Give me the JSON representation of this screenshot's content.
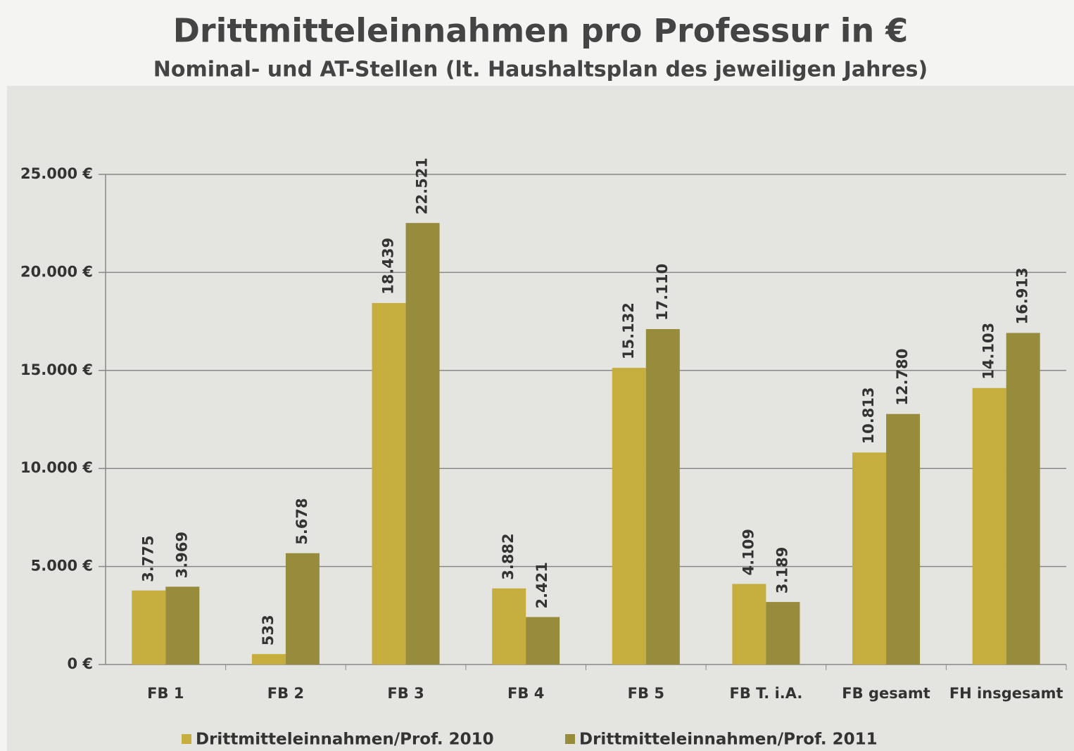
{
  "chart_data": {
    "type": "bar",
    "title": "Drittmitteleinnahmen pro Professur in €",
    "subtitle": "Nominal- und AT-Stellen (lt. Haushaltsplan des jeweiligen Jahres)",
    "categories": [
      "FB 1",
      "FB 2",
      "FB 3",
      "FB 4",
      "FB 5",
      "FB T. i.A.",
      "FB gesamt",
      "FH insgesamt"
    ],
    "series": [
      {
        "name": "Drittmitteleinnahmen/Prof. 2010",
        "color": "#c6ae3e",
        "values": [
          3775,
          533,
          18439,
          3882,
          15132,
          4109,
          10813,
          14103
        ],
        "value_labels": [
          "3.775",
          "533",
          "18.439",
          "3.882",
          "15.132",
          "4.109",
          "10.813",
          "14.103"
        ]
      },
      {
        "name": "Drittmitteleinnahmen/Prof. 2011",
        "color": "#978c3c",
        "values": [
          3969,
          5678,
          22521,
          2421,
          17110,
          3189,
          12780,
          16913
        ],
        "value_labels": [
          "3.969",
          "5.678",
          "22.521",
          "2.421",
          "17.110",
          "3.189",
          "12.780",
          "16.913"
        ]
      }
    ],
    "ylim": [
      0,
      25000
    ],
    "yticks": [
      {
        "value": 0,
        "label": "0 €"
      },
      {
        "value": 5000,
        "label": "5.000 €"
      },
      {
        "value": 10000,
        "label": "10.000 €"
      },
      {
        "value": 15000,
        "label": "15.000 €"
      },
      {
        "value": 20000,
        "label": "20.000 €"
      },
      {
        "value": 25000,
        "label": "25.000 €"
      }
    ],
    "grid": true,
    "legend": "bottom"
  }
}
